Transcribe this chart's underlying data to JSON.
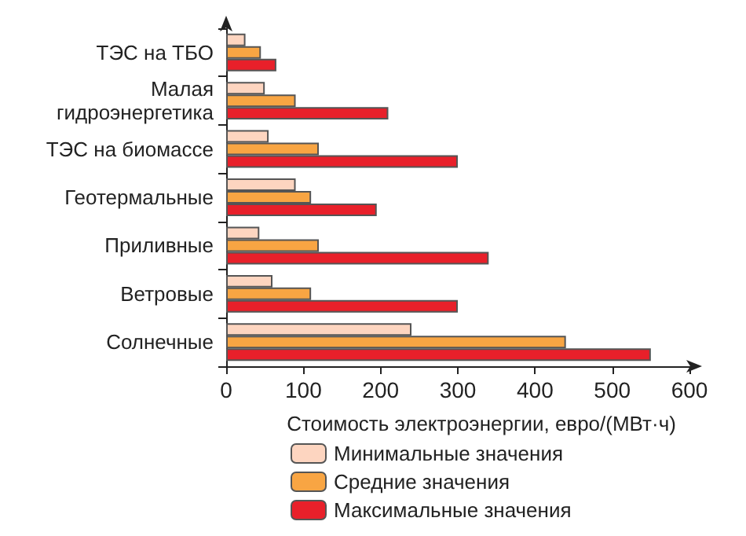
{
  "chart_data": {
    "type": "bar",
    "orientation": "horizontal",
    "xlabel": "Стоимость электроэнергии, евро/(МВт·ч)",
    "categories": [
      "ТЭС на ТБО",
      "Малая гидроэнергетика",
      "ТЭС на биомассе",
      "Геотермальные",
      "Приливные",
      "Ветровые",
      "Солнечные"
    ],
    "series": [
      {
        "name": "Минимальные значения",
        "color": "#fdd5c0",
        "values": [
          25,
          50,
          55,
          90,
          43,
          60,
          240
        ]
      },
      {
        "name": "Средние значения",
        "color": "#f8a543",
        "values": [
          45,
          90,
          120,
          110,
          120,
          110,
          440
        ]
      },
      {
        "name": "Максимальные значения",
        "color": "#e8202a",
        "values": [
          65,
          210,
          300,
          195,
          340,
          300,
          550
        ]
      }
    ],
    "xlim": [
      0,
      600
    ],
    "xticks": [
      0,
      100,
      200,
      300,
      400,
      500,
      600
    ],
    "grid": false,
    "legend": "bottom"
  }
}
